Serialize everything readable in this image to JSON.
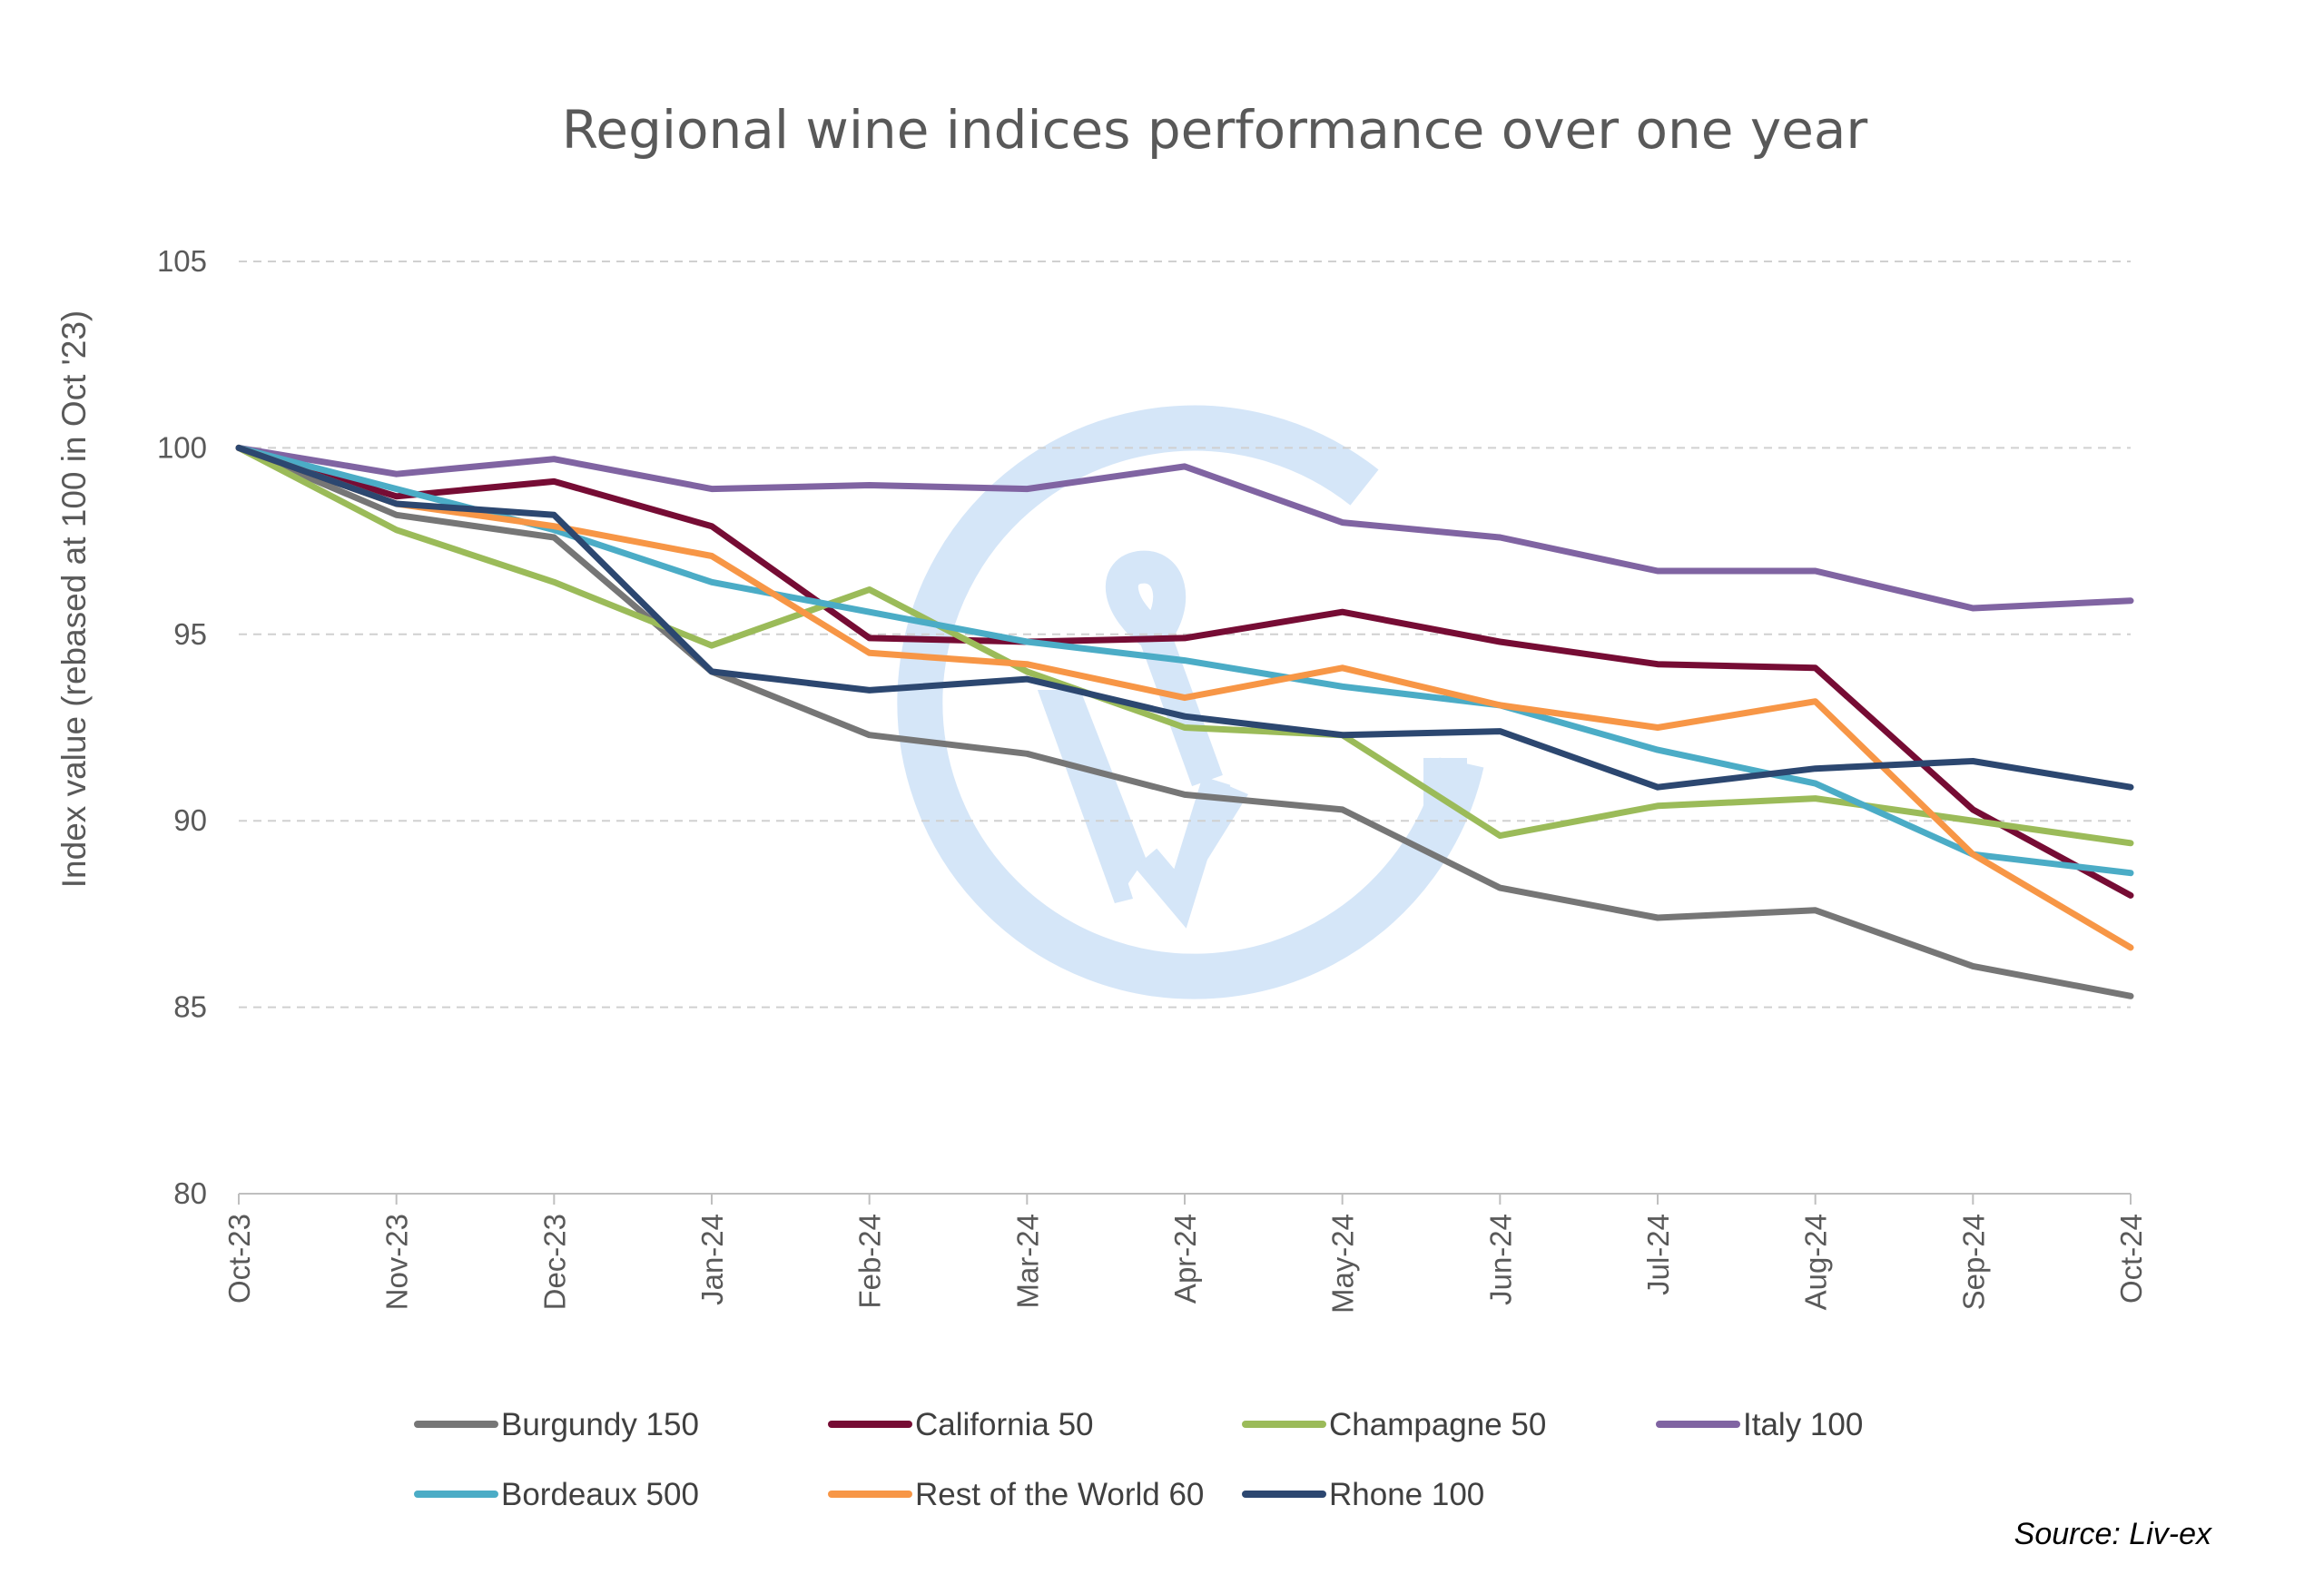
{
  "chart_data": {
    "type": "line",
    "title": "Regional wine indices performance over one year",
    "xlabel": "",
    "ylabel": "Index value  (rebased at 100 in Oct '23)",
    "ylim": [
      80,
      105
    ],
    "yticks": [
      "80",
      "85",
      "90",
      "95",
      "100",
      "105"
    ],
    "grid": "horizontal-dashed",
    "legend_position": "bottom",
    "categories": [
      "Oct-23",
      "Nov-23",
      "Dec-23",
      "Jan-24",
      "Feb-24",
      "Mar-24",
      "Apr-24",
      "May-24",
      "Jun-24",
      "Jul-24",
      "Aug-24",
      "Sep-24",
      "Oct-24"
    ],
    "series": [
      {
        "name": "Burgundy 150",
        "color": "#767676",
        "values": [
          100,
          98.2,
          97.6,
          94.0,
          92.3,
          91.8,
          90.7,
          90.3,
          88.2,
          87.4,
          87.6,
          86.1,
          85.3
        ]
      },
      {
        "name": "California 50",
        "color": "#760C34",
        "values": [
          100,
          98.7,
          99.1,
          97.9,
          94.9,
          94.8,
          94.9,
          95.6,
          94.8,
          94.2,
          94.1,
          90.3,
          88.0
        ]
      },
      {
        "name": "Champagne 50",
        "color": "#9BBB59",
        "values": [
          100,
          97.8,
          96.4,
          94.7,
          96.2,
          94.0,
          92.5,
          92.3,
          89.6,
          90.4,
          90.6,
          90.0,
          89.4
        ]
      },
      {
        "name": "Italy 100",
        "color": "#8064A2",
        "values": [
          100,
          99.3,
          99.7,
          98.9,
          99.0,
          98.9,
          99.5,
          98.0,
          97.6,
          96.7,
          96.7,
          95.7,
          95.9
        ]
      },
      {
        "name": "Bordeaux 500",
        "color": "#4BACC6",
        "values": [
          100,
          98.9,
          97.8,
          96.4,
          95.6,
          94.8,
          94.3,
          93.6,
          93.1,
          91.9,
          91.0,
          89.1,
          88.6
        ]
      },
      {
        "name": "Rest of the World 60",
        "color": "#F79646",
        "values": [
          100,
          98.5,
          97.9,
          97.1,
          94.5,
          94.2,
          93.3,
          94.1,
          93.1,
          92.5,
          93.2,
          89.1,
          86.6
        ]
      },
      {
        "name": "Rhone 100",
        "color": "#2C4770",
        "values": [
          100,
          98.5,
          98.2,
          94.0,
          93.5,
          93.8,
          92.8,
          92.3,
          92.4,
          90.9,
          91.4,
          91.6,
          90.9
        ]
      }
    ],
    "source": "Source: Liv-ex"
  },
  "watermark": {
    "icon": "liv-ex-logo-icon",
    "color": "#D5E6F8"
  }
}
